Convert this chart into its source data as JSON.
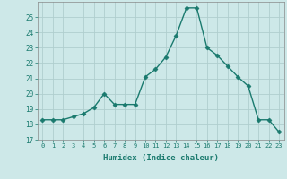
{
  "x": [
    0,
    1,
    2,
    3,
    4,
    5,
    6,
    7,
    8,
    9,
    10,
    11,
    12,
    13,
    14,
    15,
    16,
    17,
    18,
    19,
    20,
    21,
    22,
    23
  ],
  "y": [
    18.3,
    18.3,
    18.3,
    18.5,
    18.7,
    19.1,
    20.0,
    19.3,
    19.3,
    19.3,
    21.1,
    21.6,
    22.4,
    23.8,
    25.6,
    25.6,
    23.0,
    22.5,
    21.8,
    21.1,
    20.5,
    18.3,
    18.3,
    17.5
  ],
  "xlabel": "Humidex (Indice chaleur)",
  "ylim": [
    17,
    26
  ],
  "xlim": [
    -0.5,
    23.5
  ],
  "yticks": [
    17,
    18,
    19,
    20,
    21,
    22,
    23,
    24,
    25
  ],
  "xtick_labels": [
    "0",
    "1",
    "2",
    "3",
    "4",
    "5",
    "6",
    "7",
    "8",
    "9",
    "10",
    "11",
    "12",
    "13",
    "14",
    "15",
    "16",
    "17",
    "18",
    "19",
    "20",
    "21",
    "22",
    "23"
  ],
  "line_color": "#1a7a6e",
  "marker": "D",
  "marker_size": 2.5,
  "bg_color": "#cde8e8",
  "grid_color": "#b0cece",
  "tick_color": "#1a7a6e",
  "label_color": "#1a7a6e",
  "spine_color": "#888888"
}
